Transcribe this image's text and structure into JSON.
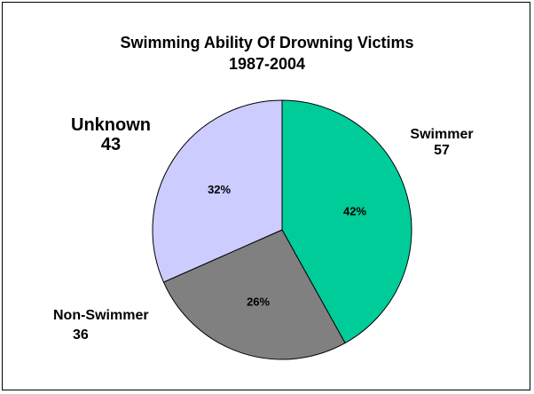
{
  "chart_data": {
    "type": "pie",
    "title": "Swimming Ability Of Drowning Victims",
    "subtitle": "1987-2004",
    "slices": [
      {
        "name": "Swimmer",
        "value": 57,
        "percent_label": "42%",
        "color": "#00cc99"
      },
      {
        "name": "Non-Swimmer",
        "value": 36,
        "percent_label": "26%",
        "color": "#808080"
      },
      {
        "name": "Unknown",
        "value": 43,
        "percent_label": "32%",
        "color": "#ccccff"
      }
    ],
    "start_angle_deg": 0,
    "direction": "clockwise"
  }
}
